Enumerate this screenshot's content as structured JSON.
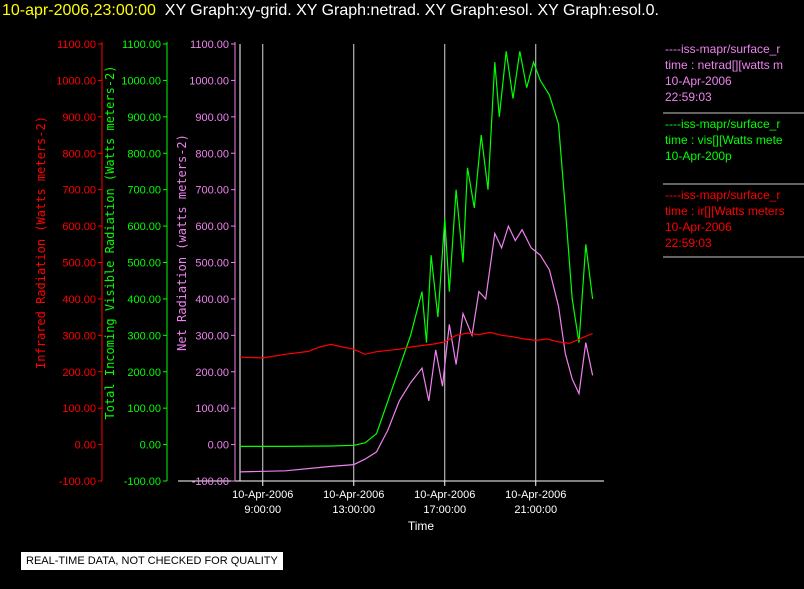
{
  "header": {
    "date": "10-apr-2006,23:00:00",
    "title_rest": "XY Graph:xy-grid.  XY Graph:netrad.  XY Graph:esol.  XY Graph:esol.0."
  },
  "colors": {
    "ir": "#ff0000",
    "vis": "#00ff00",
    "net": "#ee82ee",
    "grid": "#d8d8d8"
  },
  "legend": [
    {
      "color": "#ee82ee",
      "lines": [
        "----iss-mapr/surface_r",
        "time : netrad[][watts m",
        "10-Apr-2006",
        "22:59:03"
      ]
    },
    {
      "color": "#00ff00",
      "lines": [
        "----iss-mapr/surface_r",
        "time : vis[][Watts mete",
        "10-Apr-200p"
      ]
    },
    {
      "color": "#ff0000",
      "lines": [
        "----iss-mapr/surface_r",
        "time : ir[][Watts meters",
        "10-Apr-2006",
        "22:59:03"
      ]
    }
  ],
  "notice": "REAL-TIME DATA, NOT CHECKED FOR QUALITY",
  "chart_data": {
    "type": "line",
    "xlabel": "Time",
    "x_range_hours": [
      8,
      24
    ],
    "x_ticks": [
      {
        "hour": 9,
        "date": "10-Apr-2006",
        "time": "9:00:00"
      },
      {
        "hour": 13,
        "date": "10-Apr-2006",
        "time": "13:00:00"
      },
      {
        "hour": 17,
        "date": "10-Apr-2006",
        "time": "17:00:00"
      },
      {
        "hour": 21,
        "date": "10-Apr-2006",
        "time": "21:00:00"
      }
    ],
    "y_axes": [
      {
        "label": "Infrared Radiation (Watts meters-2)",
        "color": "#ff0000"
      },
      {
        "label": "Total Incoming Visible Radiation (Watts meters-2)",
        "color": "#00ff00"
      },
      {
        "label": "Net Radiation (watts meters-2)",
        "color": "#ee82ee"
      }
    ],
    "ylim": [
      -100,
      1100
    ],
    "y_ticks": [
      "1100.00",
      "1000.00",
      "900.00",
      "800.00",
      "700.00",
      "600.00",
      "500.00",
      "400.00",
      "300.00",
      "200.00",
      "100.00",
      "0.00",
      "-100.00"
    ],
    "grid": true,
    "series": [
      {
        "key": "vis",
        "color": "#00ff00",
        "points": [
          [
            8,
            -5
          ],
          [
            10,
            -5
          ],
          [
            12,
            -4
          ],
          [
            13,
            -2
          ],
          [
            13.5,
            5
          ],
          [
            14,
            30
          ],
          [
            14.5,
            120
          ],
          [
            15,
            210
          ],
          [
            15.5,
            300
          ],
          [
            16,
            420
          ],
          [
            16.2,
            280
          ],
          [
            16.4,
            520
          ],
          [
            16.7,
            350
          ],
          [
            17,
            620
          ],
          [
            17.2,
            420
          ],
          [
            17.5,
            700
          ],
          [
            17.8,
            500
          ],
          [
            18,
            760
          ],
          [
            18.3,
            650
          ],
          [
            18.6,
            850
          ],
          [
            18.9,
            700
          ],
          [
            19.2,
            1050
          ],
          [
            19.4,
            900
          ],
          [
            19.7,
            1080
          ],
          [
            20,
            950
          ],
          [
            20.3,
            1080
          ],
          [
            20.6,
            980
          ],
          [
            20.9,
            1050
          ],
          [
            21.2,
            1000
          ],
          [
            21.6,
            960
          ],
          [
            22,
            880
          ],
          [
            22.3,
            650
          ],
          [
            22.6,
            400
          ],
          [
            22.9,
            280
          ],
          [
            23.2,
            550
          ],
          [
            23.5,
            400
          ]
        ]
      },
      {
        "key": "net",
        "color": "#ee82ee",
        "points": [
          [
            8,
            -75
          ],
          [
            10,
            -72
          ],
          [
            12,
            -60
          ],
          [
            13,
            -55
          ],
          [
            13.5,
            -40
          ],
          [
            14,
            -20
          ],
          [
            14.5,
            40
          ],
          [
            15,
            120
          ],
          [
            15.5,
            170
          ],
          [
            16,
            210
          ],
          [
            16.3,
            120
          ],
          [
            16.6,
            260
          ],
          [
            16.9,
            160
          ],
          [
            17.2,
            330
          ],
          [
            17.5,
            220
          ],
          [
            17.8,
            360
          ],
          [
            18.2,
            300
          ],
          [
            18.5,
            420
          ],
          [
            18.8,
            400
          ],
          [
            19.2,
            580
          ],
          [
            19.5,
            540
          ],
          [
            19.8,
            600
          ],
          [
            20.1,
            560
          ],
          [
            20.4,
            590
          ],
          [
            20.8,
            540
          ],
          [
            21.2,
            520
          ],
          [
            21.6,
            480
          ],
          [
            22,
            380
          ],
          [
            22.3,
            250
          ],
          [
            22.6,
            180
          ],
          [
            22.9,
            140
          ],
          [
            23.2,
            280
          ],
          [
            23.5,
            190
          ]
        ]
      },
      {
        "key": "ir",
        "color": "#ff0000",
        "points": [
          [
            8,
            240
          ],
          [
            9,
            238
          ],
          [
            10,
            248
          ],
          [
            11,
            256
          ],
          [
            11.5,
            268
          ],
          [
            12,
            275
          ],
          [
            12.5,
            268
          ],
          [
            13,
            262
          ],
          [
            13.5,
            248
          ],
          [
            14,
            255
          ],
          [
            15,
            262
          ],
          [
            15.5,
            268
          ],
          [
            16,
            272
          ],
          [
            16.5,
            276
          ],
          [
            17,
            282
          ],
          [
            17.5,
            300
          ],
          [
            18,
            306
          ],
          [
            18.5,
            302
          ],
          [
            19,
            308
          ],
          [
            19.5,
            300
          ],
          [
            20,
            296
          ],
          [
            20.5,
            290
          ],
          [
            21,
            286
          ],
          [
            21.5,
            290
          ],
          [
            22,
            282
          ],
          [
            22.5,
            278
          ],
          [
            23,
            292
          ],
          [
            23.5,
            305
          ]
        ]
      }
    ]
  }
}
